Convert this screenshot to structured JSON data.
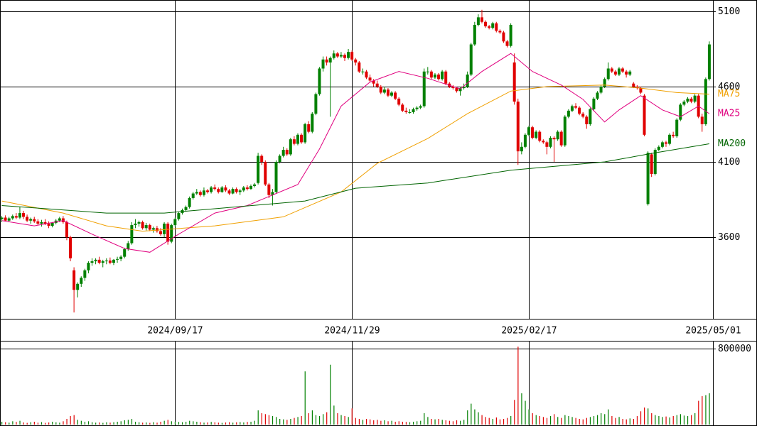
{
  "chart_data": {
    "type": "candlestick",
    "up_color": "#008000",
    "down_color": "#e00000",
    "grid": true,
    "ylim": [
      3058,
      5175
    ],
    "yticks": [
      3600,
      4100,
      4600,
      5100
    ],
    "xlim": [
      -0.5,
      197
    ],
    "xticks": [
      {
        "value": 48,
        "label": "2024/09/17"
      },
      {
        "value": 97,
        "label": "2024/11/29"
      },
      {
        "value": 146,
        "label": "2025/02/17"
      },
      {
        "value": 197,
        "label": "2025/05/01"
      }
    ],
    "ohlc": [
      [
        3720,
        3740,
        3700,
        3730
      ],
      [
        3730,
        3745,
        3705,
        3710
      ],
      [
        3710,
        3735,
        3700,
        3725
      ],
      [
        3725,
        3750,
        3715,
        3740
      ],
      [
        3740,
        3760,
        3720,
        3730
      ],
      [
        3730,
        3800,
        3720,
        3760
      ],
      [
        3760,
        3775,
        3720,
        3735
      ],
      [
        3735,
        3750,
        3700,
        3710
      ],
      [
        3710,
        3730,
        3690,
        3720
      ],
      [
        3720,
        3735,
        3695,
        3705
      ],
      [
        3705,
        3720,
        3680,
        3690
      ],
      [
        3690,
        3715,
        3670,
        3700
      ],
      [
        3700,
        3720,
        3680,
        3690
      ],
      [
        3690,
        3705,
        3660,
        3675
      ],
      [
        3675,
        3700,
        3665,
        3695
      ],
      [
        3695,
        3720,
        3685,
        3710
      ],
      [
        3710,
        3735,
        3700,
        3725
      ],
      [
        3725,
        3740,
        3690,
        3700
      ],
      [
        3700,
        3710,
        3580,
        3600
      ],
      [
        3600,
        3610,
        3440,
        3460
      ],
      [
        3380,
        3400,
        3100,
        3250
      ],
      [
        3250,
        3300,
        3200,
        3290
      ],
      [
        3290,
        3340,
        3270,
        3330
      ],
      [
        3330,
        3390,
        3310,
        3380
      ],
      [
        3380,
        3440,
        3360,
        3430
      ],
      [
        3430,
        3460,
        3410,
        3440
      ],
      [
        3440,
        3460,
        3420,
        3450
      ],
      [
        3450,
        3470,
        3420,
        3430
      ],
      [
        3430,
        3450,
        3400,
        3440
      ],
      [
        3440,
        3460,
        3420,
        3445
      ],
      [
        3445,
        3465,
        3420,
        3430
      ],
      [
        3430,
        3455,
        3415,
        3450
      ],
      [
        3450,
        3470,
        3430,
        3455
      ],
      [
        3455,
        3480,
        3440,
        3470
      ],
      [
        3470,
        3530,
        3460,
        3520
      ],
      [
        3520,
        3575,
        3510,
        3560
      ],
      [
        3560,
        3700,
        3550,
        3680
      ],
      [
        3680,
        3720,
        3660,
        3690
      ],
      [
        3690,
        3710,
        3670,
        3700
      ],
      [
        3700,
        3710,
        3650,
        3660
      ],
      [
        3660,
        3695,
        3645,
        3680
      ],
      [
        3680,
        3690,
        3640,
        3650
      ],
      [
        3650,
        3670,
        3630,
        3660
      ],
      [
        3660,
        3675,
        3630,
        3640
      ],
      [
        3640,
        3660,
        3610,
        3620
      ],
      [
        3620,
        3700,
        3600,
        3690
      ],
      [
        3690,
        3700,
        3550,
        3570
      ],
      [
        3570,
        3690,
        3560,
        3680
      ],
      [
        3680,
        3730,
        3670,
        3720
      ],
      [
        3720,
        3770,
        3710,
        3760
      ],
      [
        3760,
        3790,
        3750,
        3780
      ],
      [
        3780,
        3810,
        3770,
        3800
      ],
      [
        3800,
        3870,
        3790,
        3860
      ],
      [
        3860,
        3900,
        3850,
        3890
      ],
      [
        3890,
        3920,
        3880,
        3900
      ],
      [
        3900,
        3910,
        3870,
        3880
      ],
      [
        3880,
        3930,
        3870,
        3910
      ],
      [
        3910,
        3920,
        3890,
        3900
      ],
      [
        3900,
        3940,
        3890,
        3930
      ],
      [
        3930,
        3950,
        3910,
        3920
      ],
      [
        3920,
        3930,
        3890,
        3900
      ],
      [
        3900,
        3940,
        3895,
        3930
      ],
      [
        3930,
        3945,
        3900,
        3910
      ],
      [
        3910,
        3920,
        3880,
        3890
      ],
      [
        3890,
        3930,
        3885,
        3920
      ],
      [
        3920,
        3930,
        3890,
        3900
      ],
      [
        3900,
        3920,
        3880,
        3910
      ],
      [
        3910,
        3940,
        3900,
        3930
      ],
      [
        3930,
        3945,
        3910,
        3920
      ],
      [
        3920,
        3950,
        3915,
        3940
      ],
      [
        3940,
        3960,
        3930,
        3950
      ],
      [
        3960,
        4160,
        3950,
        4140
      ],
      [
        4140,
        4150,
        4080,
        4100
      ],
      [
        4100,
        4110,
        3940,
        3950
      ],
      [
        3950,
        3960,
        3860,
        3880
      ],
      [
        3880,
        3920,
        3810,
        3900
      ],
      [
        3900,
        4110,
        3890,
        4100
      ],
      [
        4100,
        4150,
        4090,
        4140
      ],
      [
        4140,
        4200,
        4130,
        4180
      ],
      [
        4180,
        4190,
        4140,
        4150
      ],
      [
        4150,
        4260,
        4140,
        4250
      ],
      [
        4250,
        4270,
        4210,
        4220
      ],
      [
        4220,
        4290,
        4210,
        4280
      ],
      [
        4280,
        4290,
        4220,
        4230
      ],
      [
        4230,
        4360,
        4220,
        4350
      ],
      [
        4350,
        4370,
        4290,
        4300
      ],
      [
        4300,
        4430,
        4290,
        4420
      ],
      [
        4420,
        4560,
        4410,
        4550
      ],
      [
        4550,
        4730,
        4540,
        4720
      ],
      [
        4720,
        4800,
        4700,
        4780
      ],
      [
        4780,
        4800,
        4740,
        4760
      ],
      [
        4760,
        4800,
        4400,
        4790
      ],
      [
        4790,
        4840,
        4780,
        4820
      ],
      [
        4820,
        4830,
        4790,
        4800
      ],
      [
        4800,
        4830,
        4790,
        4810
      ],
      [
        4810,
        4820,
        4770,
        4790
      ],
      [
        4790,
        4850,
        4780,
        4830
      ],
      [
        4830,
        4840,
        4770,
        4780
      ],
      [
        4780,
        4790,
        4740,
        4760
      ],
      [
        4760,
        4770,
        4690,
        4700
      ],
      [
        4700,
        4720,
        4680,
        4700
      ],
      [
        4700,
        4710,
        4650,
        4660
      ],
      [
        4660,
        4680,
        4630,
        4640
      ],
      [
        4640,
        4650,
        4600,
        4620
      ],
      [
        4620,
        4640,
        4590,
        4600
      ],
      [
        4600,
        4610,
        4550,
        4560
      ],
      [
        4560,
        4600,
        4550,
        4580
      ],
      [
        4580,
        4590,
        4530,
        4540
      ],
      [
        4540,
        4570,
        4530,
        4560
      ],
      [
        4560,
        4570,
        4510,
        4520
      ],
      [
        4520,
        4530,
        4470,
        4480
      ],
      [
        4480,
        4490,
        4430,
        4440
      ],
      [
        4440,
        4460,
        4420,
        4430
      ],
      [
        4430,
        4450,
        4420,
        4430
      ],
      [
        4430,
        4460,
        4420,
        4450
      ],
      [
        4450,
        4470,
        4440,
        4460
      ],
      [
        4460,
        4480,
        4450,
        4470
      ],
      [
        4470,
        4720,
        4460,
        4700
      ],
      [
        4700,
        4730,
        4680,
        4700
      ],
      [
        4700,
        4710,
        4650,
        4660
      ],
      [
        4660,
        4690,
        4650,
        4680
      ],
      [
        4680,
        4690,
        4640,
        4650
      ],
      [
        4650,
        4710,
        4640,
        4700
      ],
      [
        4700,
        4710,
        4610,
        4620
      ],
      [
        4620,
        4630,
        4590,
        4600
      ],
      [
        4600,
        4610,
        4580,
        4590
      ],
      [
        4590,
        4600,
        4560,
        4570
      ],
      [
        4570,
        4600,
        4540,
        4590
      ],
      [
        4590,
        4620,
        4580,
        4600
      ],
      [
        4600,
        4700,
        4590,
        4680
      ],
      [
        4680,
        4890,
        4670,
        4880
      ],
      [
        4880,
        5030,
        4870,
        5010
      ],
      [
        5010,
        5080,
        5000,
        5060
      ],
      [
        5060,
        5110,
        5020,
        5030
      ],
      [
        5030,
        5040,
        4990,
        5000
      ],
      [
        5000,
        5010,
        4980,
        4990
      ],
      [
        4990,
        5030,
        4980,
        5020
      ],
      [
        5020,
        5030,
        4960,
        4970
      ],
      [
        4970,
        4980,
        4950,
        4960
      ],
      [
        4960,
        4970,
        4890,
        4900
      ],
      [
        4900,
        4910,
        4860,
        4870
      ],
      [
        4870,
        5020,
        4860,
        5010
      ],
      [
        4760,
        4820,
        4480,
        4500
      ],
      [
        4500,
        4520,
        4080,
        4170
      ],
      [
        4170,
        4230,
        4150,
        4200
      ],
      [
        4200,
        4290,
        4190,
        4280
      ],
      [
        4280,
        4340,
        4270,
        4330
      ],
      [
        4330,
        4340,
        4250,
        4260
      ],
      [
        4260,
        4310,
        4250,
        4300
      ],
      [
        4300,
        4310,
        4230,
        4240
      ],
      [
        4240,
        4250,
        4220,
        4230
      ],
      [
        4230,
        4240,
        4150,
        4200
      ],
      [
        4200,
        4270,
        4190,
        4260
      ],
      [
        4260,
        4270,
        4100,
        4250
      ],
      [
        4250,
        4310,
        4240,
        4300
      ],
      [
        4300,
        4310,
        4200,
        4210
      ],
      [
        4210,
        4410,
        4200,
        4400
      ],
      [
        4400,
        4450,
        4390,
        4440
      ],
      [
        4440,
        4480,
        4430,
        4470
      ],
      [
        4470,
        4490,
        4450,
        4460
      ],
      [
        4460,
        4470,
        4410,
        4420
      ],
      [
        4420,
        4430,
        4390,
        4400
      ],
      [
        4400,
        4410,
        4320,
        4350
      ],
      [
        4350,
        4460,
        4340,
        4450
      ],
      [
        4450,
        4530,
        4440,
        4520
      ],
      [
        4520,
        4570,
        4510,
        4560
      ],
      [
        4560,
        4610,
        4550,
        4600
      ],
      [
        4600,
        4660,
        4590,
        4650
      ],
      [
        4650,
        4760,
        4640,
        4720
      ],
      [
        4720,
        4730,
        4690,
        4700
      ],
      [
        4700,
        4710,
        4670,
        4680
      ],
      [
        4680,
        4730,
        4670,
        4720
      ],
      [
        4720,
        4730,
        4690,
        4700
      ],
      [
        4700,
        4710,
        4660,
        4680
      ],
      [
        4680,
        4710,
        4670,
        4700
      ],
      [
        4620,
        4630,
        4590,
        4600
      ],
      [
        4600,
        4610,
        4580,
        4590
      ],
      [
        4590,
        4600,
        4550,
        4560
      ],
      [
        4540,
        4550,
        4270,
        4280
      ],
      [
        3820,
        4170,
        3810,
        4160
      ],
      [
        4150,
        4160,
        4000,
        4020
      ],
      [
        4020,
        4190,
        4010,
        4180
      ],
      [
        4180,
        4210,
        4170,
        4200
      ],
      [
        4200,
        4240,
        4190,
        4230
      ],
      [
        4230,
        4240,
        4200,
        4220
      ],
      [
        4220,
        4290,
        4210,
        4280
      ],
      [
        4280,
        4300,
        4260,
        4270
      ],
      [
        4270,
        4390,
        4260,
        4380
      ],
      [
        4380,
        4490,
        4370,
        4480
      ],
      [
        4480,
        4510,
        4470,
        4500
      ],
      [
        4500,
        4530,
        4490,
        4520
      ],
      [
        4520,
        4530,
        4490,
        4500
      ],
      [
        4500,
        4550,
        4490,
        4540
      ],
      [
        4540,
        4550,
        4390,
        4400
      ],
      [
        4400,
        4420,
        4300,
        4350
      ],
      [
        4350,
        4660,
        4340,
        4650
      ],
      [
        4650,
        4900,
        4640,
        4880
      ]
    ],
    "series": [
      {
        "name": "MA75",
        "color": "#f0a000",
        "x": [
          0,
          17,
          29,
          39,
          59,
          78,
          94,
          104,
          118,
          129,
          141,
          151,
          167,
          177,
          187,
          196
        ],
        "values": [
          3840,
          3760,
          3675,
          3640,
          3675,
          3735,
          3900,
          4090,
          4255,
          4420,
          4570,
          4600,
          4610,
          4590,
          4560,
          4550
        ]
      },
      {
        "name": "MA25",
        "color": "#e0007f",
        "x": [
          0,
          9,
          17,
          25,
          34,
          41,
          49,
          59,
          68,
          82,
          88,
          94,
          102,
          110,
          118,
          127,
          133,
          141,
          147,
          155,
          161,
          167,
          171,
          177,
          183,
          188,
          193,
          196
        ],
        "values": [
          3710,
          3675,
          3710,
          3620,
          3525,
          3500,
          3620,
          3760,
          3810,
          3950,
          4185,
          4470,
          4630,
          4700,
          4655,
          4585,
          4700,
          4820,
          4700,
          4610,
          4515,
          4365,
          4445,
          4540,
          4445,
          4400,
          4470,
          4420
        ]
      },
      {
        "name": "MA200",
        "color": "#006400",
        "x": [
          0,
          29,
          45,
          84,
          98,
          118,
          141,
          167,
          181,
          196
        ],
        "values": [
          3810,
          3760,
          3760,
          3840,
          3925,
          3960,
          4045,
          4100,
          4160,
          4220
        ]
      }
    ],
    "volume": {
      "ylim": [
        0,
        882000
      ],
      "yticks": [
        800000
      ],
      "values": [
        30000,
        25000,
        20000,
        35000,
        28000,
        40000,
        22000,
        18000,
        25000,
        30000,
        20000,
        26000,
        18000,
        22000,
        30000,
        24000,
        20000,
        35000,
        60000,
        90000,
        100000,
        50000,
        40000,
        30000,
        35000,
        25000,
        20000,
        22000,
        18000,
        24000,
        20000,
        25000,
        30000,
        35000,
        45000,
        50000,
        60000,
        30000,
        25000,
        20000,
        22000,
        18000,
        25000,
        20000,
        30000,
        40000,
        50000,
        35000,
        30000,
        28000,
        25000,
        30000,
        40000,
        35000,
        30000,
        25000,
        20000,
        22000,
        28000,
        24000,
        20000,
        18000,
        22000,
        25000,
        20000,
        24000,
        26000,
        22000,
        28000,
        30000,
        40000,
        150000,
        120000,
        110000,
        100000,
        90000,
        80000,
        60000,
        55000,
        50000,
        60000,
        70000,
        80000,
        90000,
        560000,
        120000,
        150000,
        100000,
        90000,
        110000,
        130000,
        630000,
        200000,
        120000,
        100000,
        90000,
        80000,
        170000,
        70000,
        60000,
        50000,
        60000,
        55000,
        45000,
        50000,
        40000,
        45000,
        35000,
        40000,
        30000,
        35000,
        30000,
        28000,
        25000,
        30000,
        35000,
        40000,
        120000,
        80000,
        60000,
        55000,
        60000,
        50000,
        45000,
        40000,
        35000,
        45000,
        40000,
        50000,
        150000,
        220000,
        160000,
        130000,
        100000,
        80000,
        70000,
        60000,
        75000,
        55000,
        60000,
        70000,
        90000,
        260000,
        820000,
        330000,
        250000,
        160000,
        120000,
        100000,
        90000,
        80000,
        70000,
        90000,
        110000,
        80000,
        70000,
        100000,
        90000,
        80000,
        70000,
        60000,
        55000,
        70000,
        80000,
        90000,
        100000,
        120000,
        110000,
        160000,
        90000,
        70000,
        80000,
        60000,
        55000,
        65000,
        60000,
        90000,
        140000,
        180000,
        170000,
        120000,
        100000,
        90000,
        80000,
        85000,
        75000,
        90000,
        100000,
        110000,
        95000,
        90000,
        100000,
        120000,
        250000,
        300000,
        310000,
        330000
      ]
    }
  }
}
